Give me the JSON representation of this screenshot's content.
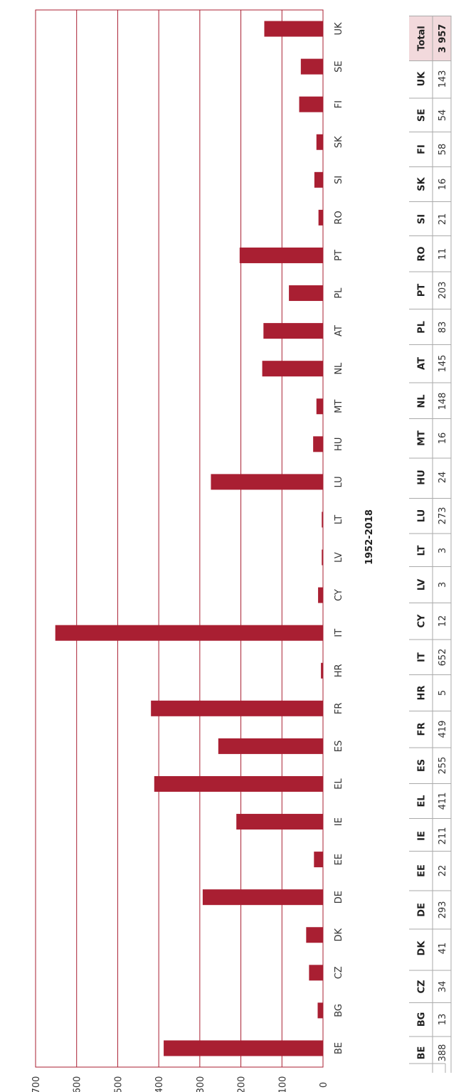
{
  "colors": {
    "bar": "#a91f32",
    "grid": "#a91f32",
    "total_header_bg": "#f2d9dc",
    "table_border": "#aaaaaa"
  },
  "chart_data": {
    "type": "bar",
    "title": "1952-2018",
    "orientation": "rotated",
    "categories": [
      "BE",
      "BG",
      "CZ",
      "DK",
      "DE",
      "EE",
      "IE",
      "EL",
      "ES",
      "FR",
      "HR",
      "IT",
      "CY",
      "LV",
      "LT",
      "LU",
      "HU",
      "MT",
      "NL",
      "AT",
      "PL",
      "PT",
      "RO",
      "SI",
      "SK",
      "FI",
      "SE",
      "UK"
    ],
    "values": [
      388,
      13,
      34,
      41,
      293,
      22,
      211,
      411,
      255,
      419,
      5,
      652,
      12,
      3,
      3,
      273,
      24,
      16,
      148,
      145,
      83,
      203,
      11,
      21,
      16,
      58,
      54,
      143
    ],
    "ylim": [
      0,
      700
    ],
    "yticks": [
      "0",
      "100",
      "200",
      "300",
      "400",
      "500",
      "600",
      "700"
    ],
    "grid": true,
    "table": {
      "columns": [
        "BE",
        "BG",
        "CZ",
        "DK",
        "DE",
        "EE",
        "IE",
        "EL",
        "ES",
        "FR",
        "HR",
        "IT",
        "CY",
        "LV",
        "LT",
        "LU",
        "HU",
        "MT",
        "NL",
        "AT",
        "PL",
        "PT",
        "RO",
        "SI",
        "SK",
        "FI",
        "SE",
        "UK",
        "Total"
      ],
      "values": [
        "388",
        "13",
        "34",
        "41",
        "293",
        "22",
        "211",
        "411",
        "255",
        "419",
        "5",
        "652",
        "12",
        "3",
        "3",
        "273",
        "24",
        "16",
        "148",
        "145",
        "83",
        "203",
        "11",
        "21",
        "16",
        "58",
        "54",
        "143",
        "3 957"
      ]
    }
  }
}
